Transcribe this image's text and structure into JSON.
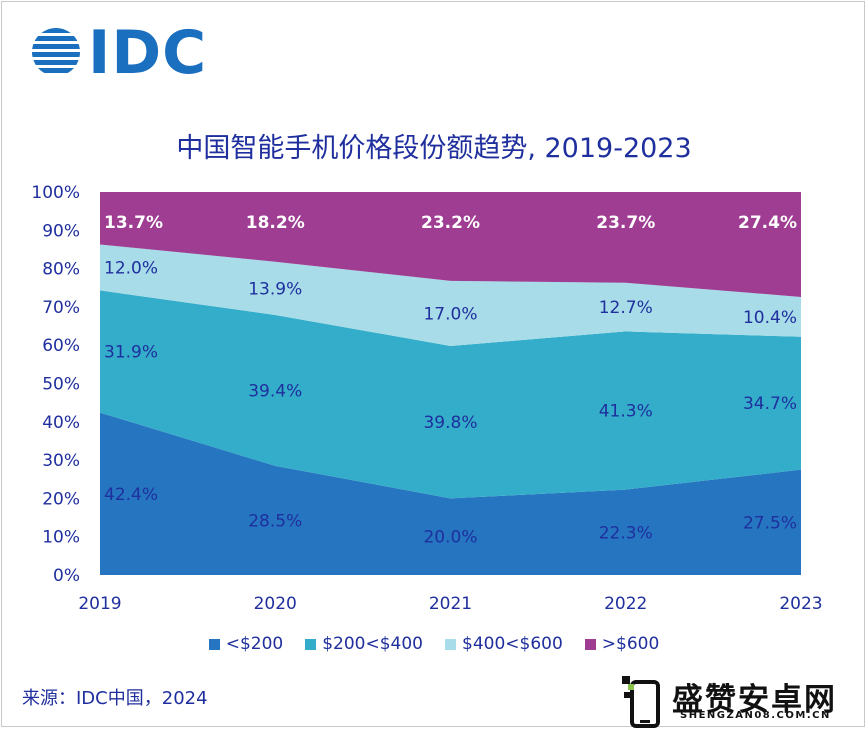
{
  "header": {
    "logo_text": "IDC"
  },
  "chart_data": {
    "type": "area",
    "stacked": true,
    "normalized": true,
    "title": "中国智能手机价格段份额趋势, 2019-2023",
    "categories": [
      "2019",
      "2020",
      "2021",
      "2022",
      "2023"
    ],
    "ylim": [
      0,
      100
    ],
    "yticks": [
      "0%",
      "10%",
      "20%",
      "30%",
      "40%",
      "50%",
      "60%",
      "70%",
      "80%",
      "90%",
      "100%"
    ],
    "series": [
      {
        "name": "<$200",
        "color": "#2575c0",
        "values": [
          42.4,
          28.5,
          20.0,
          22.3,
          27.5
        ],
        "labels": [
          "42.4%",
          "28.5%",
          "20.0%",
          "22.3%",
          "27.5%"
        ],
        "label_color": "#1f2f9e",
        "label_bold": false
      },
      {
        "name": "$200<$400",
        "color": "#33adc9",
        "values": [
          31.9,
          39.4,
          39.8,
          41.3,
          34.7
        ],
        "labels": [
          "31.9%",
          "39.4%",
          "39.8%",
          "41.3%",
          "34.7%"
        ],
        "label_color": "#1f2f9e",
        "label_bold": false
      },
      {
        "name": "$400<$600",
        "color": "#a7dce8",
        "values": [
          12.0,
          13.9,
          17.0,
          12.7,
          10.4
        ],
        "labels": [
          "12.0%",
          "13.9%",
          "17.0%",
          "12.7%",
          "10.4%"
        ],
        "label_color": "#1f2f9e",
        "label_bold": false
      },
      {
        "name": ">$600",
        "color": "#9e3d91",
        "values": [
          13.7,
          18.2,
          23.2,
          23.7,
          27.4
        ],
        "labels": [
          "13.7%",
          "18.2%",
          "23.2%",
          "23.7%",
          "27.4%"
        ],
        "label_color": "#ffffff",
        "label_bold": true
      }
    ],
    "legend_position": "bottom",
    "grid": false
  },
  "footer": {
    "source": "来源：IDC中国，2024"
  },
  "watermark": {
    "name_cn": "盛赞安卓网",
    "site": "SHENGZAN08.COM.CN"
  }
}
